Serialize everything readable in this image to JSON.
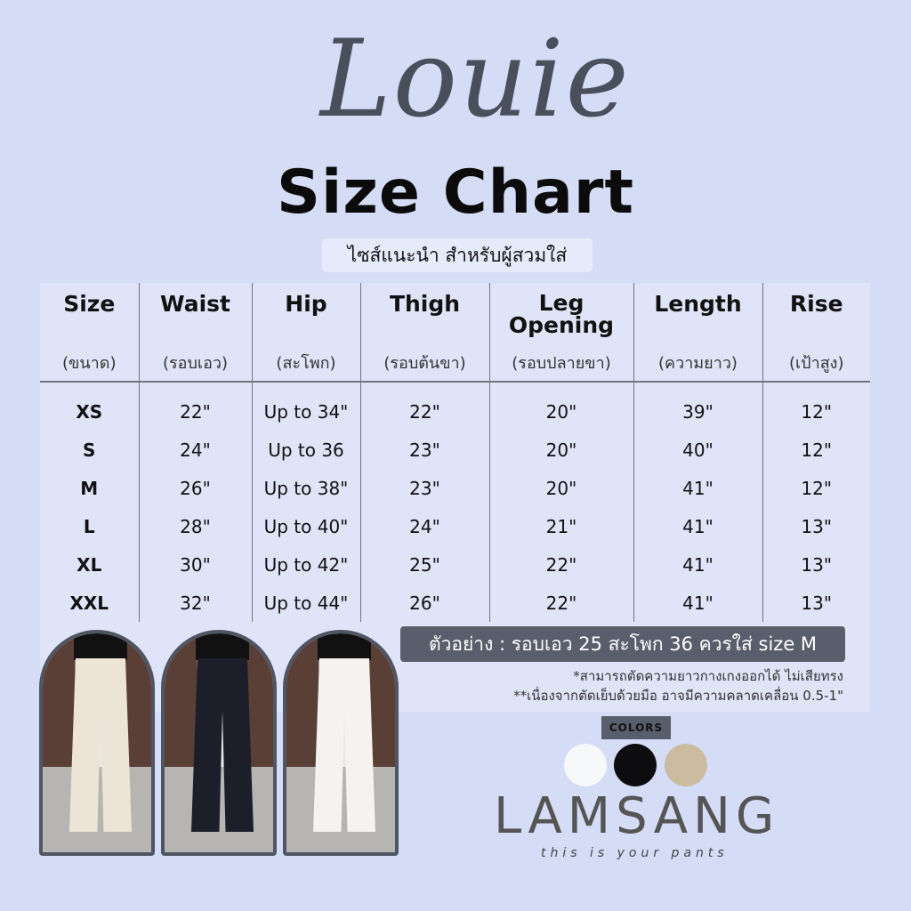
{
  "header": {
    "script_title": "Louie",
    "title": "Size Chart",
    "subtitle": "ไซส์แนะนำ สำหรับผู้สวมใส่"
  },
  "table": {
    "columns": [
      {
        "label": "Size",
        "sub": "(ขนาด)"
      },
      {
        "label": "Waist",
        "sub": "(รอบเอว)"
      },
      {
        "label": "Hip",
        "sub": "(สะโพก)"
      },
      {
        "label": "Thigh",
        "sub": "(รอบต้นขา)"
      },
      {
        "label": "Leg Opening",
        "sub": "(รอบปลายขา)"
      },
      {
        "label": "Length",
        "sub": "(ความยาว)"
      },
      {
        "label": "Rise",
        "sub": "(เป้าสูง)"
      }
    ],
    "rows": [
      [
        "XS",
        "22\"",
        "Up to 34\"",
        "22\"",
        "20\"",
        "39\"",
        "12\""
      ],
      [
        "S",
        "24\"",
        "Up to 36",
        "23\"",
        "20\"",
        "40\"",
        "12\""
      ],
      [
        "M",
        "26\"",
        "Up to 38\"",
        "23\"",
        "20\"",
        "41\"",
        "12\""
      ],
      [
        "L",
        "28\"",
        "Up to 40\"",
        "24\"",
        "21\"",
        "41\"",
        "13\""
      ],
      [
        "XL",
        "30\"",
        "Up to 42\"",
        "25\"",
        "22\"",
        "41\"",
        "13\""
      ],
      [
        "XXL",
        "32\"",
        "Up to 44\"",
        "26\"",
        "22\"",
        "41\"",
        "13\""
      ]
    ]
  },
  "example": "ตัวอย่าง : รอบเอว 25 สะโพก 36 ควรใส่ size M",
  "notes": [
    "*สามารถตัดความยาวกางเกงออกได้ ไม่เสียทรง",
    "**เนื่องจากตัดเย็บด้วยมือ อาจมีความคลาดเคลื่อน 0.5-1\""
  ],
  "photos": [
    {
      "color": "#ece4d6"
    },
    {
      "color": "#1c1f2a"
    },
    {
      "color": "#f4f3ef"
    }
  ],
  "colors": {
    "label": "COLORS",
    "swatches": [
      "#f7f8f9",
      "#0d0d0f",
      "#cbbba0"
    ]
  },
  "brand": {
    "logo": "LAMSANG",
    "tagline": "this is your pants",
    "accent": "#c8900a"
  }
}
